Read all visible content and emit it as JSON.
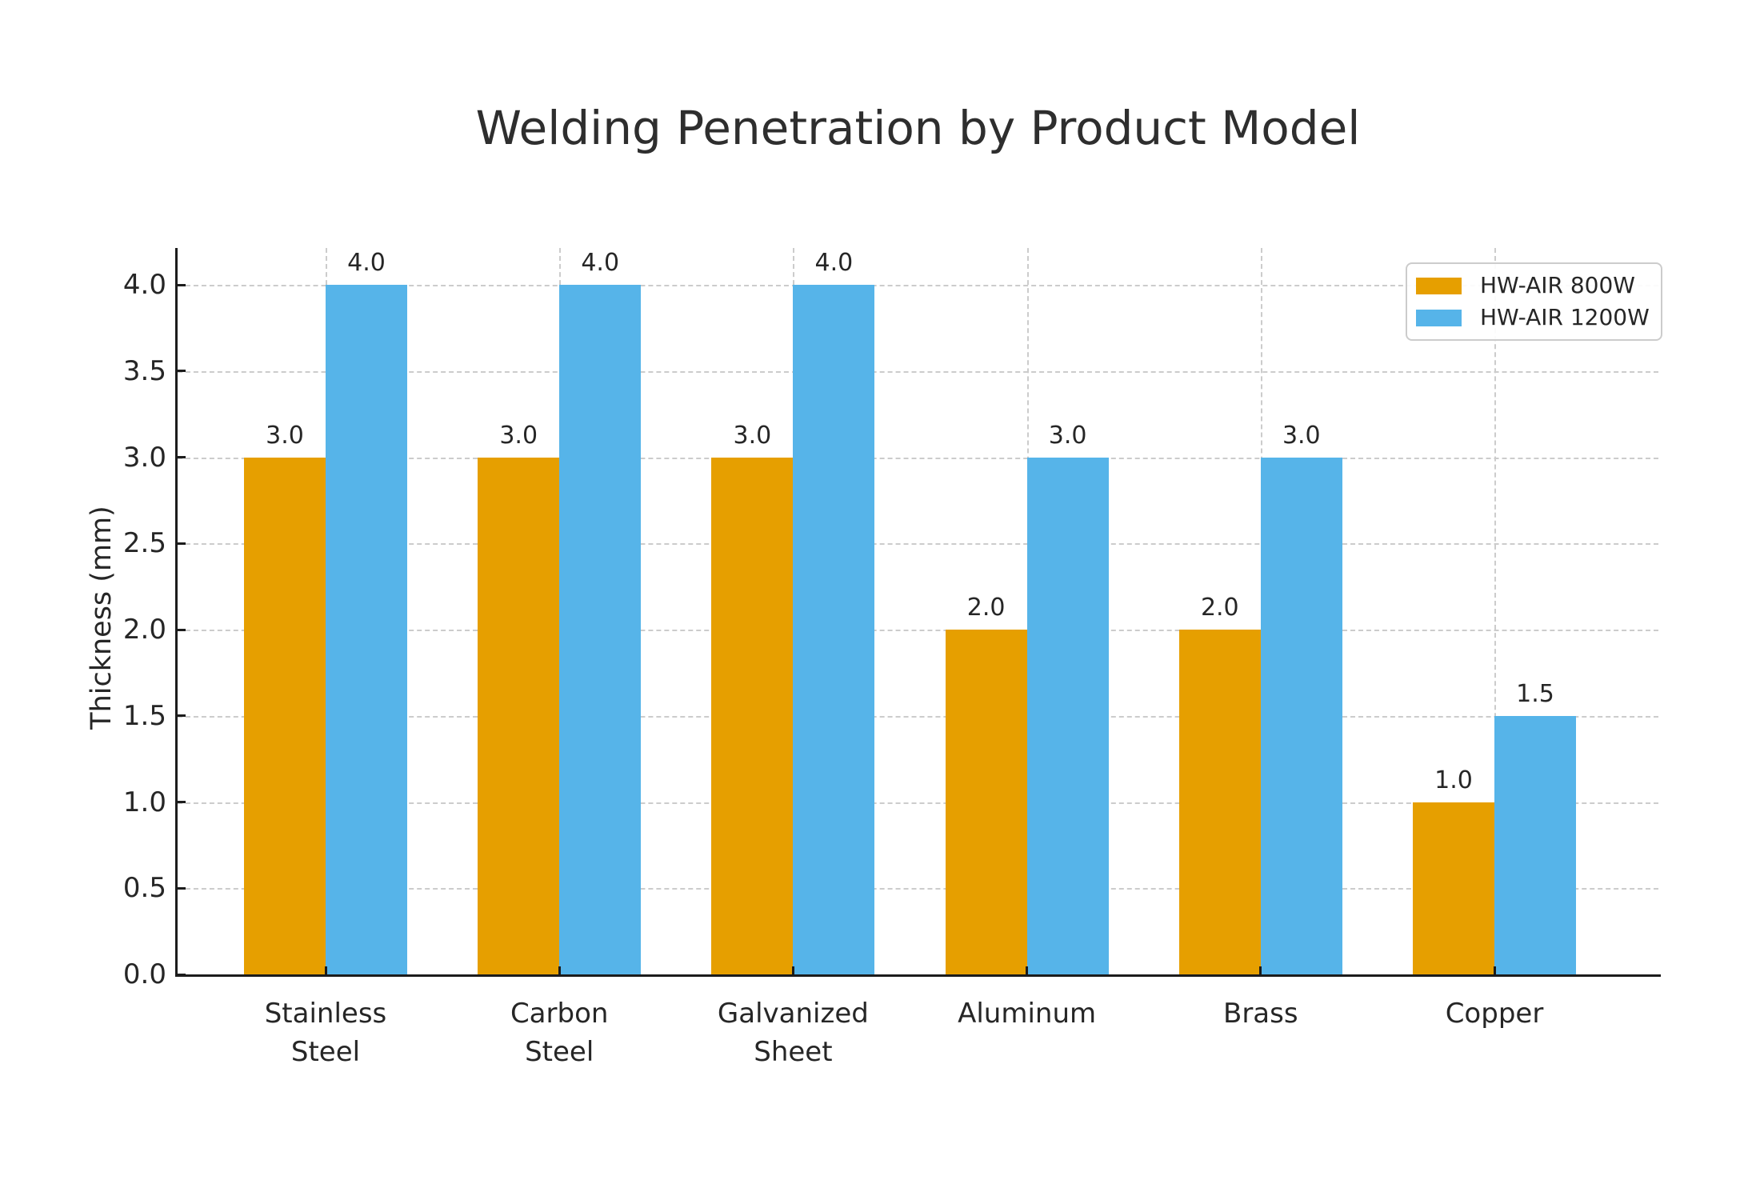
{
  "chart_data": {
    "type": "bar",
    "title": "Welding Penetration by Product Model",
    "xlabel": "",
    "ylabel": "Thickness (mm)",
    "categories": [
      "Stainless\nSteel",
      "Carbon\nSteel",
      "Galvanized\nSheet",
      "Aluminum",
      "Brass",
      "Copper"
    ],
    "series": [
      {
        "name": "HW-AIR 800W",
        "color": "#E69F00",
        "values": [
          3.0,
          3.0,
          3.0,
          2.0,
          2.0,
          1.0
        ],
        "labels": [
          "3.0",
          "3.0",
          "3.0",
          "2.0",
          "2.0",
          "1.0"
        ]
      },
      {
        "name": "HW-AIR 1200W",
        "color": "#56B4E9",
        "values": [
          4.0,
          4.0,
          4.0,
          3.0,
          3.0,
          1.5
        ],
        "labels": [
          "4.0",
          "4.0",
          "4.0",
          "3.0",
          "3.0",
          "1.5"
        ]
      }
    ],
    "yticks": [
      "0.0",
      "0.5",
      "1.0",
      "1.5",
      "2.0",
      "2.5",
      "3.0",
      "3.5",
      "4.0"
    ],
    "ylim": [
      0,
      4.21
    ],
    "grid": {
      "style": "dashed",
      "color": "#cccccc",
      "axes": "both"
    },
    "legend": {
      "position": "upper right",
      "entries": [
        "HW-AIR 800W",
        "HW-AIR 1200W"
      ]
    },
    "colors": {
      "spine": "#1c1c1c",
      "text": "#262626",
      "background": "#ffffff"
    }
  }
}
